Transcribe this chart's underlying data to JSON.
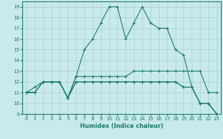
{
  "xlabel": "Humidex (Indice chaleur)",
  "background_color": "#c8eaea",
  "grid_color": "#aacccc",
  "line_color": "#1a7a6a",
  "xlim": [
    -0.5,
    23.5
  ],
  "ylim": [
    9,
    19.5
  ],
  "yticks": [
    9,
    10,
    11,
    12,
    13,
    14,
    15,
    16,
    17,
    18,
    19
  ],
  "xticks": [
    0,
    1,
    2,
    3,
    4,
    5,
    6,
    7,
    8,
    9,
    10,
    11,
    12,
    13,
    14,
    15,
    16,
    17,
    18,
    19,
    20,
    21,
    22,
    23
  ],
  "series": [
    {
      "x": [
        0,
        1,
        2,
        3,
        4,
        5,
        6,
        7,
        8,
        9,
        10,
        11,
        12,
        13,
        14,
        15,
        16,
        17,
        18,
        19,
        20,
        21,
        22,
        23
      ],
      "y": [
        11,
        11.5,
        12,
        12,
        12,
        10.5,
        12.5,
        15,
        16,
        17.5,
        19,
        19,
        16,
        17.5,
        19,
        17.5,
        17,
        17,
        15,
        14.5,
        11.5,
        10,
        10,
        9
      ]
    },
    {
      "x": [
        0,
        1,
        2,
        3,
        4,
        5,
        6,
        7,
        8,
        9,
        10,
        11,
        12,
        13,
        14,
        15,
        16,
        17,
        18,
        19,
        20,
        21,
        22,
        23
      ],
      "y": [
        11,
        11,
        12,
        12,
        12,
        10.5,
        12.5,
        12.5,
        12.5,
        12.5,
        12.5,
        12.5,
        12.5,
        13,
        13,
        13,
        13,
        13,
        13,
        13,
        13,
        13,
        11,
        11
      ]
    },
    {
      "x": [
        0,
        1,
        2,
        3,
        4,
        5,
        6,
        7,
        8,
        9,
        10,
        11,
        12,
        13,
        14,
        15,
        16,
        17,
        18,
        19,
        20,
        21,
        22,
        23
      ],
      "y": [
        11,
        11,
        12,
        12,
        12,
        10.5,
        12,
        12,
        12,
        12,
        12,
        12,
        12,
        12,
        12,
        12,
        12,
        12,
        12,
        11.5,
        11.5,
        10,
        10,
        9
      ]
    },
    {
      "x": [
        0,
        1,
        2,
        3,
        4,
        5,
        6,
        7,
        8,
        9,
        10,
        11,
        12,
        13,
        14,
        15,
        16,
        17,
        18,
        19,
        20,
        21,
        22,
        23
      ],
      "y": [
        11,
        11,
        12,
        12,
        12,
        10.5,
        12,
        12,
        12,
        12,
        12,
        12,
        12,
        12,
        12,
        12,
        12,
        12,
        12,
        11.5,
        11.5,
        10,
        10,
        9
      ]
    }
  ]
}
